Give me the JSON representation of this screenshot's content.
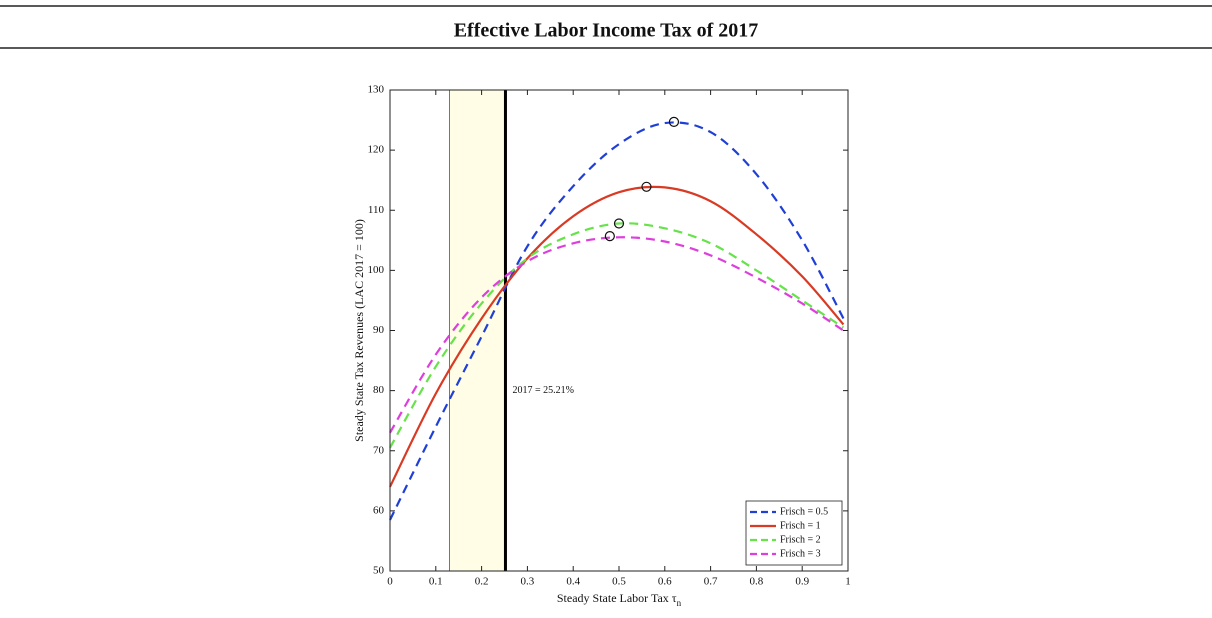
{
  "header": {
    "title": "Effective Labor Income Tax of 2017"
  },
  "chart_data": {
    "type": "line",
    "xlabel": "Steady State Labor Tax τ",
    "xlabel_sub": "n",
    "ylabel": "Steady State Tax Revenues (LAC 2017 = 100)",
    "xlim": [
      0,
      1
    ],
    "ylim": [
      50,
      130
    ],
    "xticks": [
      0,
      0.1,
      0.2,
      0.3,
      0.4,
      0.5,
      0.6,
      0.7,
      0.8,
      0.9,
      1
    ],
    "yticks": [
      50,
      60,
      70,
      80,
      90,
      100,
      110,
      120,
      130
    ],
    "x": [
      0,
      0.1,
      0.2,
      0.3,
      0.4,
      0.5,
      0.6,
      0.7,
      0.8,
      0.9,
      0.99
    ],
    "shade": [
      0.13,
      0.25
    ],
    "shade_color": "#fffde6",
    "vline": 0.2521,
    "annotation": "2017 = 25.21%",
    "legend": "lower right",
    "series": [
      {
        "name": "Frisch = 0.5",
        "color": "#1f3fd6",
        "dashed": true,
        "values": [
          58.5,
          74,
          89,
          104,
          114,
          121,
          124.5,
          123,
          116,
          105,
          92
        ],
        "peak": [
          0.62,
          124.7
        ]
      },
      {
        "name": "Frisch = 1",
        "color": "#d93a24",
        "dashed": false,
        "values": [
          64,
          79.5,
          92,
          102,
          109,
          113,
          113.8,
          111.5,
          106,
          99,
          91
        ],
        "peak": [
          0.56,
          113.9
        ]
      },
      {
        "name": "Frisch = 2",
        "color": "#66e24a",
        "dashed": true,
        "values": [
          70.5,
          84,
          94.5,
          102,
          106,
          107.8,
          107,
          104.5,
          100,
          95,
          90.5
        ],
        "peak": [
          0.5,
          107.8
        ]
      },
      {
        "name": "Frisch = 3",
        "color": "#dd3fdd",
        "dashed": true,
        "values": [
          73,
          86,
          95.5,
          101.5,
          104.5,
          105.5,
          104.8,
          102.5,
          98.8,
          94.5,
          90
        ],
        "peak": [
          0.48,
          105.7
        ]
      }
    ]
  }
}
